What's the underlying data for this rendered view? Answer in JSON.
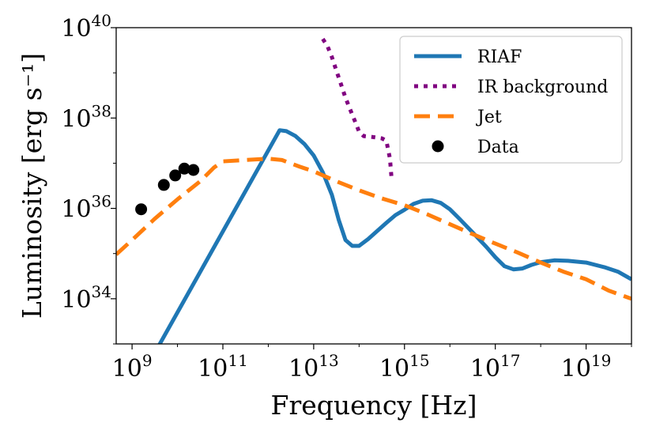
{
  "chart_data": {
    "type": "line",
    "title": "",
    "xlabel": "Frequency [Hz]",
    "ylabel": "Luminosity [erg s⁻¹]",
    "xscale": "log",
    "yscale": "log",
    "xlim_log10": [
      8.65,
      20.0
    ],
    "ylim_log10": [
      33.0,
      40.0
    ],
    "x_ticks": [
      {
        "base": "10",
        "exp": "9",
        "log10": 9
      },
      {
        "base": "10",
        "exp": "11",
        "log10": 11
      },
      {
        "base": "10",
        "exp": "13",
        "log10": 13
      },
      {
        "base": "10",
        "exp": "15",
        "log10": 15
      },
      {
        "base": "10",
        "exp": "17",
        "log10": 17
      },
      {
        "base": "10",
        "exp": "19",
        "log10": 19
      }
    ],
    "y_ticks": [
      {
        "base": "10",
        "exp": "34",
        "log10": 34
      },
      {
        "base": "10",
        "exp": "36",
        "log10": 36
      },
      {
        "base": "10",
        "exp": "38",
        "log10": 38
      },
      {
        "base": "10",
        "exp": "40",
        "log10": 40
      }
    ],
    "legend_position": "top-right",
    "series": [
      {
        "name": "RIAF",
        "style": "solid",
        "color": "#1f77b4",
        "log10_x": [
          9.5,
          12.25,
          12.4,
          12.6,
          12.8,
          13.0,
          13.2,
          13.4,
          13.55,
          13.7,
          13.85,
          14.0,
          14.2,
          14.4,
          14.6,
          14.8,
          15.0,
          15.2,
          15.4,
          15.6,
          15.8,
          16.0,
          16.2,
          16.5,
          16.8,
          17.0,
          17.2,
          17.4,
          17.6,
          17.8,
          18.0,
          18.3,
          18.6,
          19.0,
          19.4,
          19.7,
          20.0
        ],
        "log10_y": [
          32.8,
          37.73,
          37.71,
          37.6,
          37.42,
          37.17,
          36.8,
          36.3,
          35.75,
          35.3,
          35.17,
          35.17,
          35.32,
          35.5,
          35.68,
          35.85,
          35.97,
          36.1,
          36.17,
          36.18,
          36.12,
          35.98,
          35.78,
          35.47,
          35.15,
          34.92,
          34.72,
          34.65,
          34.67,
          34.75,
          34.81,
          34.85,
          34.84,
          34.8,
          34.7,
          34.6,
          34.43
        ]
      },
      {
        "name": "IR background",
        "style": "dotted",
        "color": "#800080",
        "log10_x": [
          13.2,
          13.3,
          13.4,
          13.5,
          13.6,
          13.7,
          13.8,
          13.9,
          14.0,
          14.1,
          14.3,
          14.5,
          14.6,
          14.68,
          14.72
        ],
        "log10_y": [
          39.75,
          39.6,
          39.35,
          39.05,
          38.75,
          38.45,
          38.2,
          37.95,
          37.7,
          37.6,
          37.58,
          37.55,
          37.5,
          37.1,
          36.6
        ]
      },
      {
        "name": "Jet",
        "style": "dashed",
        "color": "#ff7f0e",
        "log10_x": [
          8.65,
          9.0,
          9.5,
          10.0,
          10.5,
          10.8,
          11.0,
          11.5,
          12.0,
          12.3,
          12.7,
          13.0,
          13.5,
          14.0,
          14.5,
          15.0,
          15.5,
          16.0,
          16.5,
          17.0,
          17.5,
          18.0,
          18.5,
          19.0,
          19.5,
          20.0
        ],
        "log10_y": [
          34.98,
          35.3,
          35.77,
          36.2,
          36.6,
          36.9,
          37.04,
          37.07,
          37.1,
          37.07,
          36.92,
          36.82,
          36.6,
          36.4,
          36.22,
          36.07,
          35.87,
          35.65,
          35.43,
          35.22,
          35.02,
          34.8,
          34.6,
          34.43,
          34.18,
          34.0
        ]
      }
    ],
    "data_points": {
      "name": "Data",
      "color": "#000000",
      "log10_x": [
        9.2,
        9.7,
        9.95,
        10.15,
        10.35
      ],
      "log10_y": [
        35.98,
        36.52,
        36.73,
        36.88,
        36.85
      ]
    }
  }
}
